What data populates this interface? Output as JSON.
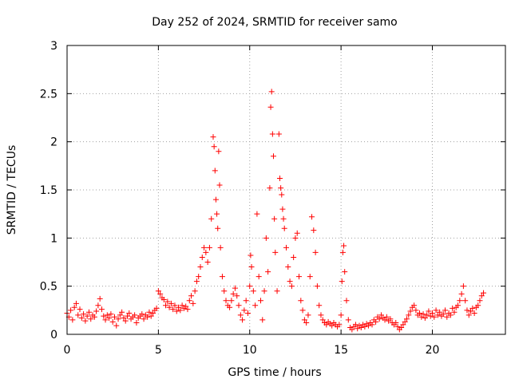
{
  "chart_data": {
    "type": "scatter",
    "title": "Day 252 of 2024, SRMTID for receiver samo",
    "xlabel": "GPS time / hours",
    "ylabel": "SRMTID / TECUs",
    "xlim": [
      0,
      24
    ],
    "ylim": [
      0,
      3
    ],
    "xticks": [
      0,
      5,
      10,
      15,
      20
    ],
    "xtick_labels": [
      "0",
      "5",
      "10",
      "15",
      "20"
    ],
    "yticks": [
      0,
      0.5,
      1,
      1.5,
      2,
      2.5,
      3
    ],
    "ytick_labels": [
      "0",
      "0.5",
      "1",
      "1.5",
      "2",
      "2.5",
      "3"
    ],
    "grid": true,
    "marker": "plus",
    "color": "#ff0000",
    "series": [
      {
        "name": "SRMTID",
        "points": [
          [
            0.0,
            0.22
          ],
          [
            0.1,
            0.18
          ],
          [
            0.2,
            0.25
          ],
          [
            0.3,
            0.15
          ],
          [
            0.4,
            0.28
          ],
          [
            0.5,
            0.32
          ],
          [
            0.6,
            0.2
          ],
          [
            0.7,
            0.26
          ],
          [
            0.8,
            0.17
          ],
          [
            0.9,
            0.21
          ],
          [
            1.0,
            0.14
          ],
          [
            1.1,
            0.19
          ],
          [
            1.2,
            0.23
          ],
          [
            1.3,
            0.16
          ],
          [
            1.4,
            0.2
          ],
          [
            1.5,
            0.18
          ],
          [
            1.6,
            0.24
          ],
          [
            1.7,
            0.3
          ],
          [
            1.8,
            0.37
          ],
          [
            1.9,
            0.26
          ],
          [
            2.0,
            0.19
          ],
          [
            2.1,
            0.15
          ],
          [
            2.2,
            0.2
          ],
          [
            2.3,
            0.17
          ],
          [
            2.4,
            0.21
          ],
          [
            2.5,
            0.13
          ],
          [
            2.6,
            0.18
          ],
          [
            2.7,
            0.09
          ],
          [
            2.8,
            0.16
          ],
          [
            2.9,
            0.2
          ],
          [
            3.0,
            0.23
          ],
          [
            3.1,
            0.17
          ],
          [
            3.2,
            0.14
          ],
          [
            3.3,
            0.19
          ],
          [
            3.4,
            0.22
          ],
          [
            3.5,
            0.16
          ],
          [
            3.6,
            0.18
          ],
          [
            3.7,
            0.2
          ],
          [
            3.8,
            0.12
          ],
          [
            3.9,
            0.17
          ],
          [
            4.0,
            0.19
          ],
          [
            4.1,
            0.21
          ],
          [
            4.2,
            0.16
          ],
          [
            4.3,
            0.2
          ],
          [
            4.4,
            0.18
          ],
          [
            4.5,
            0.23
          ],
          [
            4.6,
            0.19
          ],
          [
            4.7,
            0.22
          ],
          [
            4.8,
            0.25
          ],
          [
            4.9,
            0.27
          ],
          [
            5.0,
            0.45
          ],
          [
            5.1,
            0.42
          ],
          [
            5.2,
            0.38
          ],
          [
            5.3,
            0.36
          ],
          [
            5.4,
            0.3
          ],
          [
            5.5,
            0.34
          ],
          [
            5.6,
            0.28
          ],
          [
            5.7,
            0.32
          ],
          [
            5.8,
            0.26
          ],
          [
            5.9,
            0.3
          ],
          [
            6.0,
            0.24
          ],
          [
            6.1,
            0.28
          ],
          [
            6.2,
            0.25
          ],
          [
            6.3,
            0.3
          ],
          [
            6.4,
            0.27
          ],
          [
            6.5,
            0.29
          ],
          [
            6.6,
            0.26
          ],
          [
            6.7,
            0.35
          ],
          [
            6.8,
            0.4
          ],
          [
            6.9,
            0.32
          ],
          [
            7.0,
            0.45
          ],
          [
            7.1,
            0.55
          ],
          [
            7.2,
            0.6
          ],
          [
            7.3,
            0.7
          ],
          [
            7.4,
            0.8
          ],
          [
            7.5,
            0.9
          ],
          [
            7.6,
            0.85
          ],
          [
            7.7,
            0.75
          ],
          [
            7.8,
            0.9
          ],
          [
            7.9,
            1.2
          ],
          [
            8.0,
            2.05
          ],
          [
            8.05,
            1.95
          ],
          [
            8.1,
            1.7
          ],
          [
            8.15,
            1.4
          ],
          [
            8.2,
            1.25
          ],
          [
            8.25,
            1.1
          ],
          [
            8.3,
            1.9
          ],
          [
            8.35,
            1.55
          ],
          [
            8.4,
            0.9
          ],
          [
            8.5,
            0.6
          ],
          [
            8.6,
            0.45
          ],
          [
            8.7,
            0.35
          ],
          [
            8.8,
            0.3
          ],
          [
            8.9,
            0.28
          ],
          [
            9.0,
            0.35
          ],
          [
            9.1,
            0.42
          ],
          [
            9.2,
            0.48
          ],
          [
            9.3,
            0.4
          ],
          [
            9.4,
            0.3
          ],
          [
            9.5,
            0.2
          ],
          [
            9.6,
            0.15
          ],
          [
            9.7,
            0.25
          ],
          [
            9.8,
            0.35
          ],
          [
            9.9,
            0.22
          ],
          [
            10.0,
            0.5
          ],
          [
            10.05,
            0.82
          ],
          [
            10.1,
            0.7
          ],
          [
            10.2,
            0.45
          ],
          [
            10.3,
            0.3
          ],
          [
            10.4,
            1.25
          ],
          [
            10.5,
            0.6
          ],
          [
            10.6,
            0.35
          ],
          [
            10.7,
            0.15
          ],
          [
            10.8,
            0.45
          ],
          [
            10.9,
            1.0
          ],
          [
            11.0,
            0.65
          ],
          [
            11.1,
            1.52
          ],
          [
            11.15,
            2.36
          ],
          [
            11.2,
            2.52
          ],
          [
            11.25,
            2.08
          ],
          [
            11.3,
            1.85
          ],
          [
            11.35,
            1.2
          ],
          [
            11.4,
            0.85
          ],
          [
            11.5,
            0.45
          ],
          [
            11.6,
            2.08
          ],
          [
            11.65,
            1.62
          ],
          [
            11.7,
            1.52
          ],
          [
            11.75,
            1.45
          ],
          [
            11.8,
            1.3
          ],
          [
            11.85,
            1.2
          ],
          [
            11.9,
            1.1
          ],
          [
            12.0,
            0.9
          ],
          [
            12.1,
            0.7
          ],
          [
            12.2,
            0.55
          ],
          [
            12.3,
            0.5
          ],
          [
            12.4,
            0.8
          ],
          [
            12.5,
            1.0
          ],
          [
            12.6,
            1.05
          ],
          [
            12.7,
            0.6
          ],
          [
            12.8,
            0.35
          ],
          [
            12.9,
            0.25
          ],
          [
            13.0,
            0.15
          ],
          [
            13.1,
            0.12
          ],
          [
            13.2,
            0.2
          ],
          [
            13.3,
            0.6
          ],
          [
            13.4,
            1.22
          ],
          [
            13.5,
            1.08
          ],
          [
            13.6,
            0.85
          ],
          [
            13.7,
            0.5
          ],
          [
            13.8,
            0.3
          ],
          [
            13.9,
            0.2
          ],
          [
            14.0,
            0.15
          ],
          [
            14.1,
            0.12
          ],
          [
            14.2,
            0.1
          ],
          [
            14.3,
            0.13
          ],
          [
            14.4,
            0.11
          ],
          [
            14.5,
            0.09
          ],
          [
            14.6,
            0.12
          ],
          [
            14.7,
            0.1
          ],
          [
            14.8,
            0.08
          ],
          [
            14.9,
            0.1
          ],
          [
            15.0,
            0.2
          ],
          [
            15.05,
            0.55
          ],
          [
            15.1,
            0.85
          ],
          [
            15.15,
            0.92
          ],
          [
            15.2,
            0.65
          ],
          [
            15.3,
            0.35
          ],
          [
            15.4,
            0.15
          ],
          [
            15.5,
            0.07
          ],
          [
            15.6,
            0.05
          ],
          [
            15.7,
            0.08
          ],
          [
            15.8,
            0.1
          ],
          [
            15.9,
            0.06
          ],
          [
            16.0,
            0.09
          ],
          [
            16.1,
            0.07
          ],
          [
            16.2,
            0.1
          ],
          [
            16.3,
            0.08
          ],
          [
            16.4,
            0.11
          ],
          [
            16.5,
            0.09
          ],
          [
            16.6,
            0.12
          ],
          [
            16.7,
            0.1
          ],
          [
            16.8,
            0.15
          ],
          [
            16.9,
            0.13
          ],
          [
            17.0,
            0.18
          ],
          [
            17.1,
            0.16
          ],
          [
            17.2,
            0.2
          ],
          [
            17.3,
            0.17
          ],
          [
            17.4,
            0.15
          ],
          [
            17.5,
            0.18
          ],
          [
            17.6,
            0.14
          ],
          [
            17.7,
            0.16
          ],
          [
            17.8,
            0.12
          ],
          [
            17.9,
            0.1
          ],
          [
            18.0,
            0.12
          ],
          [
            18.1,
            0.08
          ],
          [
            18.2,
            0.05
          ],
          [
            18.3,
            0.07
          ],
          [
            18.4,
            0.1
          ],
          [
            18.5,
            0.13
          ],
          [
            18.6,
            0.16
          ],
          [
            18.7,
            0.2
          ],
          [
            18.8,
            0.24
          ],
          [
            18.9,
            0.28
          ],
          [
            19.0,
            0.3
          ],
          [
            19.1,
            0.25
          ],
          [
            19.2,
            0.2
          ],
          [
            19.3,
            0.22
          ],
          [
            19.4,
            0.18
          ],
          [
            19.5,
            0.21
          ],
          [
            19.6,
            0.17
          ],
          [
            19.7,
            0.2
          ],
          [
            19.8,
            0.24
          ],
          [
            19.9,
            0.19
          ],
          [
            20.0,
            0.22
          ],
          [
            20.1,
            0.18
          ],
          [
            20.2,
            0.25
          ],
          [
            20.3,
            0.2
          ],
          [
            20.4,
            0.23
          ],
          [
            20.5,
            0.19
          ],
          [
            20.6,
            0.21
          ],
          [
            20.7,
            0.25
          ],
          [
            20.8,
            0.18
          ],
          [
            20.9,
            0.22
          ],
          [
            21.0,
            0.2
          ],
          [
            21.1,
            0.27
          ],
          [
            21.2,
            0.23
          ],
          [
            21.3,
            0.28
          ],
          [
            21.4,
            0.3
          ],
          [
            21.5,
            0.35
          ],
          [
            21.6,
            0.42
          ],
          [
            21.7,
            0.5
          ],
          [
            21.8,
            0.35
          ],
          [
            21.9,
            0.25
          ],
          [
            22.0,
            0.2
          ],
          [
            22.1,
            0.24
          ],
          [
            22.2,
            0.27
          ],
          [
            22.3,
            0.22
          ],
          [
            22.4,
            0.28
          ],
          [
            22.5,
            0.3
          ],
          [
            22.6,
            0.35
          ],
          [
            22.7,
            0.4
          ],
          [
            22.8,
            0.43
          ]
        ]
      }
    ]
  }
}
